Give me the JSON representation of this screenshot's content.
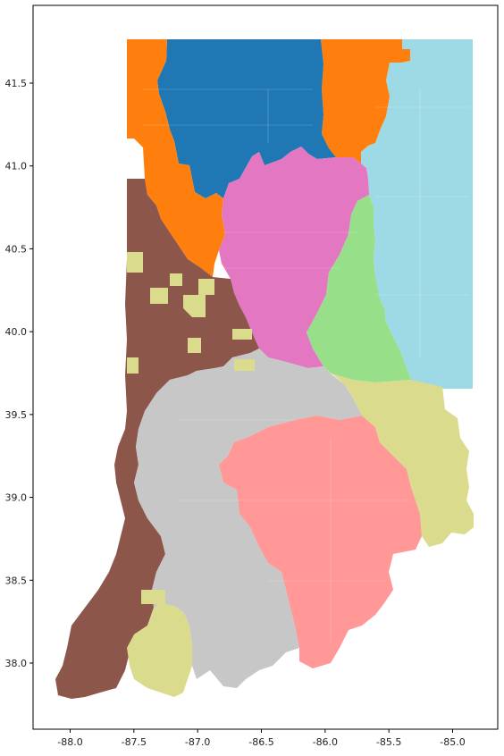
{
  "chart_data": {
    "type": "map",
    "title": "",
    "xlabel": "",
    "ylabel": "",
    "xlim": [
      -88.25,
      -84.6
    ],
    "ylim": [
      37.55,
      41.95
    ],
    "x_ticks": [
      "-88.0",
      "-87.5",
      "-87.0",
      "-86.5",
      "-86.0",
      "-85.5",
      "-85.0"
    ],
    "y_ticks": [
      "38.0",
      "38.5",
      "39.0",
      "39.5",
      "40.0",
      "40.5",
      "41.0",
      "41.5"
    ],
    "grid": false,
    "legend": "none",
    "regions": [
      {
        "id": "district-blue",
        "color": "#1f77b4"
      },
      {
        "id": "district-orange",
        "color": "#ff7f0e"
      },
      {
        "id": "district-lightblue",
        "color": "#9edae5"
      },
      {
        "id": "district-pink",
        "color": "#e377c2"
      },
      {
        "id": "district-green",
        "color": "#98df8a"
      },
      {
        "id": "district-brown",
        "color": "#8c564b"
      },
      {
        "id": "district-olive",
        "color": "#dbdb8d"
      },
      {
        "id": "district-gray",
        "color": "#c7c7c7"
      },
      {
        "id": "district-salmon",
        "color": "#ff9896"
      }
    ]
  }
}
